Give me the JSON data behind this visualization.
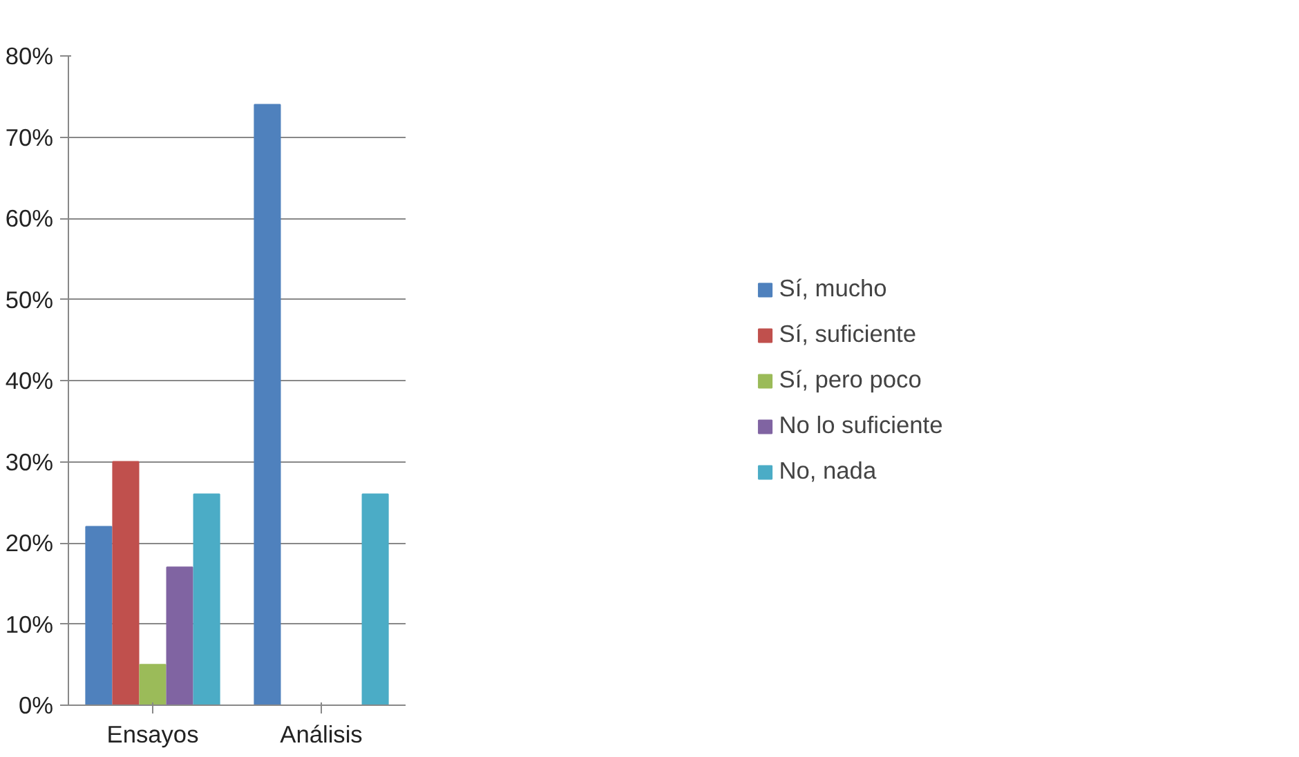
{
  "chart_data": {
    "type": "bar",
    "categories": [
      "Ensayos",
      "Análisis"
    ],
    "series": [
      {
        "name": "Sí, mucho",
        "color": "#4f81bd",
        "values": [
          22,
          74
        ]
      },
      {
        "name": "Sí, suficiente",
        "color": "#c0504d",
        "values": [
          30,
          0
        ]
      },
      {
        "name": "Sí, pero poco",
        "color": "#9bbb59",
        "values": [
          5,
          0
        ]
      },
      {
        "name": "No lo suficiente",
        "color": "#8064a2",
        "values": [
          17,
          null
        ]
      },
      {
        "name": "No, nada",
        "color": "#4bacc6",
        "values": [
          26,
          26
        ]
      }
    ],
    "ylim": [
      0,
      80
    ],
    "yticks": [
      {
        "value": 0,
        "label": "0%"
      },
      {
        "value": 10,
        "label": "10%"
      },
      {
        "value": 20,
        "label": "20%"
      },
      {
        "value": 30,
        "label": "30%"
      },
      {
        "value": 40,
        "label": "40%"
      },
      {
        "value": 50,
        "label": "50%"
      },
      {
        "value": 60,
        "label": "60%"
      },
      {
        "value": 70,
        "label": "70%"
      },
      {
        "value": 80,
        "label": "80%"
      }
    ],
    "grid": "y",
    "legend": "right"
  }
}
